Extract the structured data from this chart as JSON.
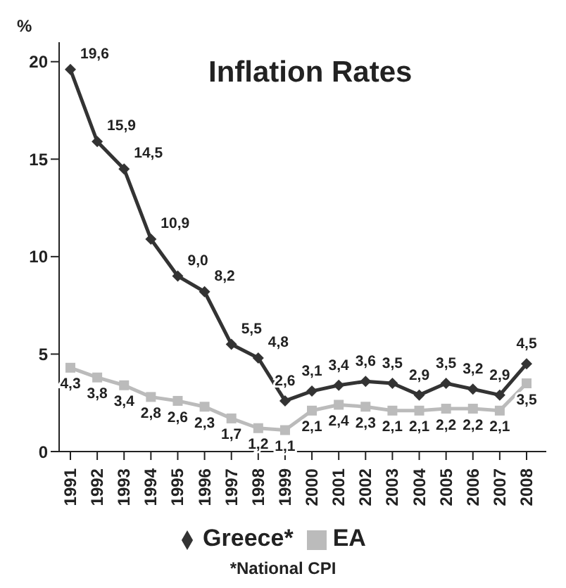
{
  "chart_data": {
    "type": "line",
    "title": "Inflation Rates",
    "ylabel": "%",
    "categories": [
      "1991",
      "1992",
      "1993",
      "1994",
      "1995",
      "1996",
      "1997",
      "1998",
      "1999",
      "2000",
      "2001",
      "2002",
      "2003",
      "2004",
      "2005",
      "2006",
      "2007",
      "2008"
    ],
    "series": [
      {
        "name": "Greece*",
        "color": "#333333",
        "marker": "diamond",
        "values": [
          19.6,
          15.9,
          14.5,
          10.9,
          9.0,
          8.2,
          5.5,
          4.8,
          2.6,
          3.1,
          3.4,
          3.6,
          3.5,
          2.9,
          3.5,
          3.2,
          2.9,
          4.5
        ],
        "value_labels": [
          "19,6",
          "15,9",
          "14,5",
          "10,9",
          "9,0",
          "8,2",
          "5,5",
          "4,8",
          "2,6",
          "3,1",
          "3,4",
          "3,6",
          "3,5",
          "2,9",
          "3,5",
          "3,2",
          "2,9",
          "4,5"
        ]
      },
      {
        "name": "EA",
        "color": "#bbbbbb",
        "marker": "square",
        "values": [
          4.3,
          3.8,
          3.4,
          2.8,
          2.6,
          2.3,
          1.7,
          1.2,
          1.1,
          2.1,
          2.4,
          2.3,
          2.1,
          2.1,
          2.2,
          2.2,
          2.1,
          3.5
        ],
        "value_labels": [
          "4,3",
          "3,8",
          "3,4",
          "2,8",
          "2,6",
          "2,3",
          "1,7",
          "1,2",
          "1,1",
          "2,1",
          "2,4",
          "2,3",
          "2,1",
          "2,1",
          "2,2",
          "2,2",
          "2,1",
          "3,5"
        ]
      }
    ],
    "ylim": [
      0,
      21
    ],
    "yticks": [
      0,
      5,
      10,
      15,
      20
    ],
    "grid": false,
    "legend": "bottom",
    "line_style": "solid",
    "annotations": [
      "*National CPI"
    ]
  }
}
